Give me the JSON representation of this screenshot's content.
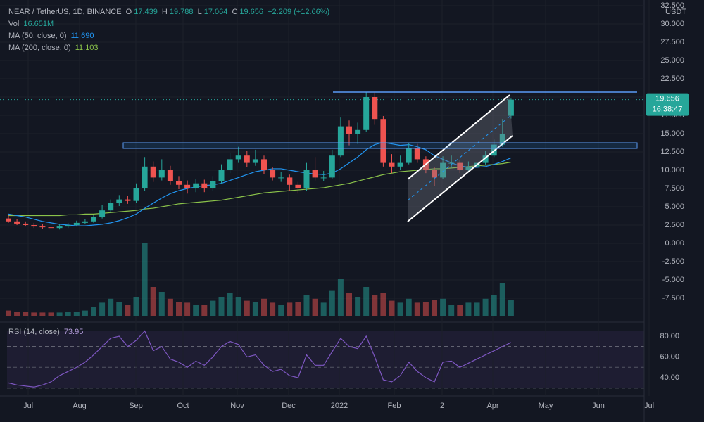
{
  "header": {
    "symbol": "NEAR / TetherUS, 1D, BINANCE",
    "o_label": "O",
    "o": "17.439",
    "h_label": "H",
    "h": "19.788",
    "l_label": "L",
    "l": "17.064",
    "c_label": "C",
    "c": "19.656",
    "change": "+2.209 (+12.66%)",
    "vol_label": "Vol",
    "vol": "16.651M",
    "ma50_label": "MA (50, close, 0)",
    "ma50": "11.690",
    "ma200_label": "MA (200, close, 0)",
    "ma200": "11.103"
  },
  "rsi_header": {
    "label": "RSI (14, close)",
    "value": "73.95"
  },
  "currency": "USDT",
  "last_price": {
    "value": 19.656,
    "label": "19.656",
    "countdown": "16:38:47"
  },
  "price_axis": [
    {
      "value": 32.5,
      "label": "32.500"
    },
    {
      "value": 30,
      "label": "30.000"
    },
    {
      "value": 27.5,
      "label": "27.500"
    },
    {
      "value": 25,
      "label": "25.000"
    },
    {
      "value": 22.5,
      "label": "22.500"
    },
    {
      "value": 20,
      "label": "20.000"
    },
    {
      "value": 17.5,
      "label": "17.500"
    },
    {
      "value": 15,
      "label": "15.000"
    },
    {
      "value": 12.5,
      "label": "12.500"
    },
    {
      "value": 10,
      "label": "10.000"
    },
    {
      "value": 7.5,
      "label": "7.500"
    },
    {
      "value": 5,
      "label": "5.000"
    },
    {
      "value": 2.5,
      "label": "2.500"
    },
    {
      "value": 0,
      "label": "0.000"
    },
    {
      "value": -2.5,
      "label": "-2.500"
    },
    {
      "value": -5,
      "label": "-5.000"
    },
    {
      "value": -7.5,
      "label": "-7.500"
    }
  ],
  "rsi_axis": [
    {
      "value": 80,
      "label": "80.00"
    },
    {
      "value": 60,
      "label": "60.00"
    },
    {
      "value": 40,
      "label": "40.00"
    }
  ],
  "time_axis": [
    "Jul",
    "Aug",
    "Sep",
    "Oct",
    "Nov",
    "Dec",
    "2022",
    "Feb",
    "2",
    "Apr",
    "May",
    "Jun",
    "Jul"
  ],
  "candles": [
    [
      3.4,
      3.9,
      2.8,
      3.0
    ],
    [
      3.0,
      3.3,
      2.5,
      2.7
    ],
    [
      2.7,
      3.0,
      2.3,
      2.5
    ],
    [
      2.5,
      2.8,
      2.1,
      2.3
    ],
    [
      2.3,
      2.6,
      2.0,
      2.2
    ],
    [
      2.2,
      2.5,
      1.8,
      2.1
    ],
    [
      2.1,
      2.6,
      1.9,
      2.3
    ],
    [
      2.3,
      2.8,
      2.1,
      2.5
    ],
    [
      2.5,
      3.1,
      2.3,
      2.8
    ],
    [
      2.8,
      3.3,
      2.6,
      3.0
    ],
    [
      3.0,
      3.9,
      2.8,
      3.6
    ],
    [
      3.6,
      5.2,
      3.4,
      4.5
    ],
    [
      4.5,
      6.0,
      4.2,
      5.5
    ],
    [
      5.5,
      6.6,
      5.1,
      6.0
    ],
    [
      6.0,
      6.5,
      5.4,
      5.8
    ],
    [
      5.8,
      8.2,
      5.5,
      7.5
    ],
    [
      7.5,
      11.8,
      7.2,
      10.5
    ],
    [
      10.5,
      11.2,
      8.4,
      9.0
    ],
    [
      9.0,
      11.5,
      8.6,
      10.0
    ],
    [
      10.0,
      10.6,
      8.0,
      8.5
    ],
    [
      8.5,
      9.2,
      7.4,
      8.0
    ],
    [
      8.0,
      8.6,
      6.8,
      7.5
    ],
    [
      7.5,
      8.8,
      7.0,
      8.2
    ],
    [
      8.2,
      8.7,
      7.0,
      7.5
    ],
    [
      7.5,
      9.2,
      7.2,
      8.5
    ],
    [
      8.5,
      10.8,
      8.2,
      10.0
    ],
    [
      10.0,
      12.4,
      9.6,
      11.5
    ],
    [
      11.5,
      13.2,
      11.0,
      12.0
    ],
    [
      12.0,
      12.6,
      10.4,
      11.0
    ],
    [
      11.0,
      12.8,
      10.6,
      11.5
    ],
    [
      11.5,
      12.0,
      9.5,
      10.0
    ],
    [
      10.0,
      10.4,
      8.6,
      9.0
    ],
    [
      9.0,
      9.8,
      8.4,
      9.0
    ],
    [
      9.0,
      9.4,
      7.2,
      8.0
    ],
    [
      8.0,
      8.4,
      6.8,
      7.5
    ],
    [
      7.5,
      11.0,
      7.2,
      10.0
    ],
    [
      10.0,
      11.8,
      8.6,
      9.0
    ],
    [
      9.0,
      9.9,
      8.5,
      9.0
    ],
    [
      9.0,
      12.8,
      8.8,
      12.0
    ],
    [
      12.0,
      17.2,
      11.8,
      16.0
    ],
    [
      16.0,
      16.8,
      13.4,
      15.0
    ],
    [
      15.0,
      16.5,
      13.6,
      15.5
    ],
    [
      15.5,
      20.7,
      15.2,
      20.0
    ],
    [
      20.0,
      20.6,
      16.2,
      17.0
    ],
    [
      17.0,
      17.4,
      10.5,
      11.0
    ],
    [
      11.0,
      12.2,
      9.6,
      10.5
    ],
    [
      10.5,
      12.0,
      10.0,
      11.0
    ],
    [
      11.0,
      13.8,
      10.8,
      13.0
    ],
    [
      13.0,
      13.6,
      11.0,
      11.5
    ],
    [
      11.5,
      11.9,
      9.6,
      10.0
    ],
    [
      10.0,
      10.4,
      7.8,
      9.0
    ],
    [
      9.0,
      11.9,
      8.8,
      11.0
    ],
    [
      11.0,
      12.0,
      10.3,
      11.0
    ],
    [
      11.0,
      11.4,
      9.6,
      10.0
    ],
    [
      10.0,
      11.2,
      9.8,
      10.5
    ],
    [
      10.5,
      11.6,
      10.2,
      11.0
    ],
    [
      11.0,
      12.6,
      10.7,
      12.0
    ],
    [
      12.0,
      14.2,
      11.8,
      13.5
    ],
    [
      13.5,
      17.0,
      13.2,
      15.0
    ],
    [
      17.439,
      19.788,
      17.064,
      19.656
    ]
  ],
  "volumes": [
    6,
    5,
    5,
    4,
    4,
    4,
    4,
    5,
    5,
    6,
    10,
    14,
    18,
    15,
    12,
    20,
    75,
    30,
    25,
    18,
    15,
    14,
    12,
    12,
    16,
    20,
    24,
    20,
    16,
    15,
    18,
    14,
    12,
    14,
    15,
    22,
    18,
    14,
    26,
    38,
    24,
    20,
    30,
    22,
    24,
    16,
    14,
    18,
    14,
    15,
    17,
    18,
    12,
    12,
    14,
    14,
    18,
    22,
    34,
    16.651
  ],
  "ma50": [
    4.0,
    3.8,
    3.6,
    3.3,
    3.0,
    2.8,
    2.6,
    2.5,
    2.4,
    2.4,
    2.5,
    2.6,
    2.8,
    3.1,
    3.5,
    4.0,
    4.8,
    5.5,
    6.2,
    6.8,
    7.2,
    7.5,
    7.7,
    7.9,
    8.0,
    8.2,
    8.6,
    9.0,
    9.4,
    9.8,
    10.0,
    10.2,
    10.2,
    10.0,
    9.8,
    9.6,
    9.5,
    9.4,
    9.6,
    10.2,
    11.0,
    11.8,
    12.8,
    13.5,
    13.8,
    13.6,
    13.4,
    13.5,
    13.2,
    12.8,
    12.0,
    11.5,
    11.0,
    10.6,
    10.4,
    10.4,
    10.5,
    10.8,
    11.2,
    11.69
  ],
  "ma200": [
    3.8,
    3.8,
    3.8,
    3.8,
    3.8,
    3.8,
    3.8,
    3.9,
    3.9,
    4.0,
    4.0,
    4.1,
    4.2,
    4.3,
    4.4,
    4.5,
    4.7,
    4.8,
    5.0,
    5.2,
    5.4,
    5.5,
    5.6,
    5.7,
    5.8,
    5.9,
    6.1,
    6.3,
    6.5,
    6.7,
    6.9,
    7.0,
    7.1,
    7.2,
    7.3,
    7.4,
    7.5,
    7.6,
    7.8,
    8.0,
    8.2,
    8.5,
    8.8,
    9.1,
    9.4,
    9.6,
    9.8,
    9.9,
    10.0,
    10.1,
    10.2,
    10.2,
    10.3,
    10.4,
    10.5,
    10.6,
    10.7,
    10.8,
    10.9,
    11.103
  ],
  "rsi": [
    35,
    33,
    32,
    31,
    33,
    36,
    42,
    46,
    50,
    55,
    62,
    70,
    78,
    80,
    70,
    76,
    85,
    66,
    70,
    58,
    55,
    50,
    56,
    52,
    60,
    70,
    75,
    72,
    60,
    62,
    52,
    46,
    48,
    42,
    40,
    62,
    52,
    52,
    65,
    78,
    70,
    68,
    80,
    60,
    38,
    36,
    42,
    55,
    46,
    40,
    36,
    55,
    56,
    50,
    54,
    58,
    62,
    66,
    70,
    73.95
  ]
}
